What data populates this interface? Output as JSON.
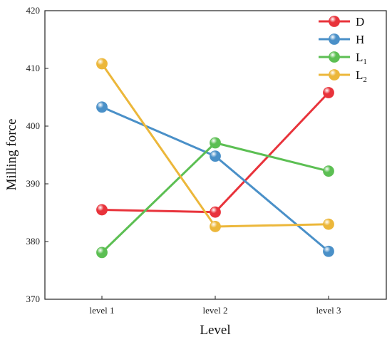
{
  "chart_data": {
    "type": "line",
    "categories": [
      "level 1",
      "level 2",
      "level 3"
    ],
    "xlabel": "Level",
    "ylabel": "Milling force",
    "ylim": [
      370,
      420
    ],
    "yticks": [
      370,
      380,
      390,
      400,
      410,
      420
    ],
    "grid": false,
    "legend_position": "top-right",
    "series": [
      {
        "name": "D",
        "name_base": "D",
        "name_sub": "",
        "color": "#e8333b",
        "values": [
          385.5,
          385.1,
          405.8
        ]
      },
      {
        "name": "H",
        "name_base": "H",
        "name_sub": "",
        "color": "#4a90c8",
        "values": [
          403.3,
          394.8,
          378.3
        ]
      },
      {
        "name": "L1",
        "name_base": "L",
        "name_sub": "1",
        "color": "#5cbf53",
        "values": [
          378.1,
          397.1,
          392.2
        ]
      },
      {
        "name": "L2",
        "name_base": "L",
        "name_sub": "2",
        "color": "#ecb73a",
        "values": [
          410.8,
          382.6,
          383.0
        ]
      }
    ]
  }
}
